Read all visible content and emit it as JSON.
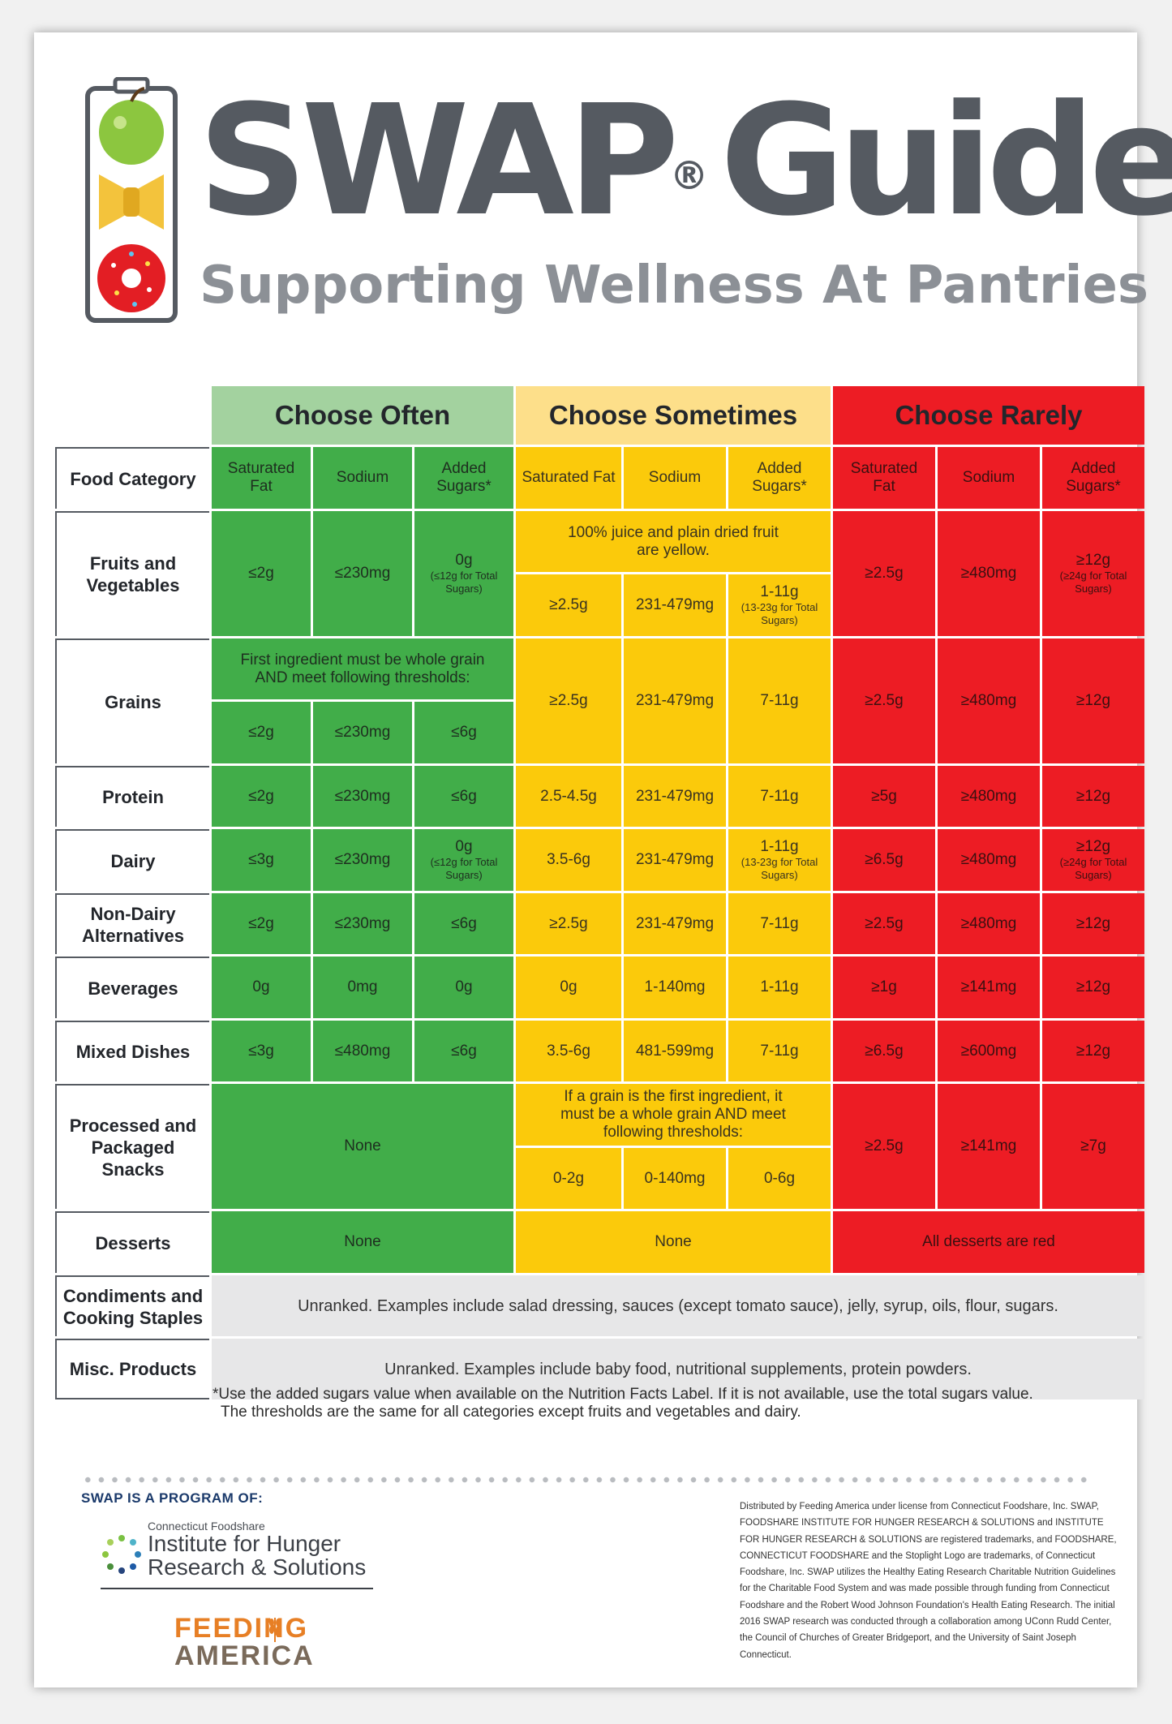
{
  "header": {
    "title": "SWAP",
    "title_reg": "®",
    "title_guide": "Guide",
    "subtitle": "Supporting Wellness At Pantries"
  },
  "table": {
    "groups": {
      "often": "Choose Often",
      "sometimes": "Choose Sometimes",
      "rarely": "Choose Rarely"
    },
    "food_category_header": "Food Category",
    "col_sat_fat": "Saturated Fat",
    "col_sodium": "Sodium",
    "col_added_sugars": "Added Sugars*",
    "categories": {
      "fruits": "Fruits and Vegetables",
      "grains": "Grains",
      "protein": "Protein",
      "dairy": "Dairy",
      "nondairy": "Non-Dairy Alternatives",
      "beverages": "Beverages",
      "mixed": "Mixed Dishes",
      "processed": "Processed and Packaged Snacks",
      "desserts": "Desserts",
      "condiments": "Condiments and Cooking Staples",
      "misc": "Misc. Products"
    },
    "fruits": {
      "often": [
        "≤2g",
        "≤230mg",
        "0g"
      ],
      "often_sugar_note": "(≤12g for Total Sugars)",
      "sometimes_note": "100% juice and plain dried fruit are yellow.",
      "sometimes": [
        "≥2.5g",
        "231-479mg",
        "1-11g"
      ],
      "sometimes_sugar_note": "(13-23g for Total Sugars)",
      "rarely": [
        "≥2.5g",
        "≥480mg",
        "≥12g"
      ],
      "rarely_sugar_note": "(≥24g for Total Sugars)"
    },
    "grains": {
      "often_note": "First ingredient must be whole grain AND meet following thresholds:",
      "often": [
        "≤2g",
        "≤230mg",
        "≤6g"
      ],
      "sometimes": [
        "≥2.5g",
        "231-479mg",
        "7-11g"
      ],
      "rarely": [
        "≥2.5g",
        "≥480mg",
        "≥12g"
      ]
    },
    "protein": {
      "often": [
        "≤2g",
        "≤230mg",
        "≤6g"
      ],
      "sometimes": [
        "2.5-4.5g",
        "231-479mg",
        "7-11g"
      ],
      "rarely": [
        "≥5g",
        "≥480mg",
        "≥12g"
      ]
    },
    "dairy": {
      "often": [
        "≤3g",
        "≤230mg",
        "0g"
      ],
      "often_sugar_note": "(≤12g for Total Sugars)",
      "sometimes": [
        "3.5-6g",
        "231-479mg",
        "1-11g"
      ],
      "sometimes_sugar_note": "(13-23g for Total Sugars)",
      "rarely": [
        "≥6.5g",
        "≥480mg",
        "≥12g"
      ],
      "rarely_sugar_note": "(≥24g for Total Sugars)"
    },
    "nondairy": {
      "often": [
        "≤2g",
        "≤230mg",
        "≤6g"
      ],
      "sometimes": [
        "≥2.5g",
        "231-479mg",
        "7-11g"
      ],
      "rarely": [
        "≥2.5g",
        "≥480mg",
        "≥12g"
      ]
    },
    "beverages": {
      "often": [
        "0g",
        "0mg",
        "0g"
      ],
      "sometimes": [
        "0g",
        "1-140mg",
        "1-11g"
      ],
      "rarely": [
        "≥1g",
        "≥141mg",
        "≥12g"
      ]
    },
    "mixed": {
      "often": [
        "≤3g",
        "≤480mg",
        "≤6g"
      ],
      "sometimes": [
        "3.5-6g",
        "481-599mg",
        "7-11g"
      ],
      "rarely": [
        "≥6.5g",
        "≥600mg",
        "≥12g"
      ]
    },
    "processed": {
      "often": "None",
      "sometimes_note": "If a grain is the first ingredient, it must be a whole grain AND meet following thresholds:",
      "sometimes": [
        "0-2g",
        "0-140mg",
        "0-6g"
      ],
      "rarely": [
        "≥2.5g",
        "≥141mg",
        "≥7g"
      ]
    },
    "desserts": {
      "often": "None",
      "sometimes": "None",
      "rarely": "All desserts are red"
    },
    "condiments_text": "Unranked. Examples include salad dressing, sauces (except tomato sauce), jelly, syrup, oils, flour, sugars.",
    "misc_text": "Unranked. Examples include baby food, nutritional supplements, protein powders."
  },
  "footnote": {
    "line1": "*Use the added sugars value when available on the Nutrition Facts Label. If it is not available, use the total sugars value.",
    "line2": "The thresholds are the same for all categories except fruits and vegetables and dairy."
  },
  "footer": {
    "program_label": "SWAP IS A PROGRAM OF:",
    "org_small": "Connecticut Foodshare",
    "org_line1": "Institute for Hunger",
    "org_line2": "Research & Solutions",
    "fa_line1": "FEEDING",
    "fa_line2": "AMERICA",
    "disclaimer": "Distributed by Feeding America under license from Connecticut Foodshare, Inc. SWAP, FOODSHARE INSTITUTE FOR HUNGER RESEARCH & SOLUTIONS and INSTITUTE FOR HUNGER RESEARCH & SOLUTIONS are registered trademarks, and FOODSHARE, CONNECTICUT FOODSHARE and the Stoplight Logo are trademarks, of Connecticut Foodshare, Inc. SWAP utilizes the Healthy Eating Research Charitable Nutrition Guidelines for the Charitable Food System and was made possible through funding from Connecticut Foodshare and the Robert Wood Johnson Foundation's Health Eating Research. The initial 2016 SWAP research was conducted through a collaboration among UConn Rudd Center, the Council of Churches of Greater Bridgeport, and the University of Saint Joseph Connecticut."
  },
  "colors": {
    "green": "#41ad49",
    "light_green": "#a3d29f",
    "yellow": "#fbca0b",
    "light_yellow": "#fddf8a",
    "red": "#ed1c24",
    "gray": "#e7e7e8",
    "title_gray": "#555a61"
  },
  "icons": {
    "logo": "stoplight-food-icon",
    "org": "circle-dots-icon",
    "fa": "wheat-icon"
  }
}
